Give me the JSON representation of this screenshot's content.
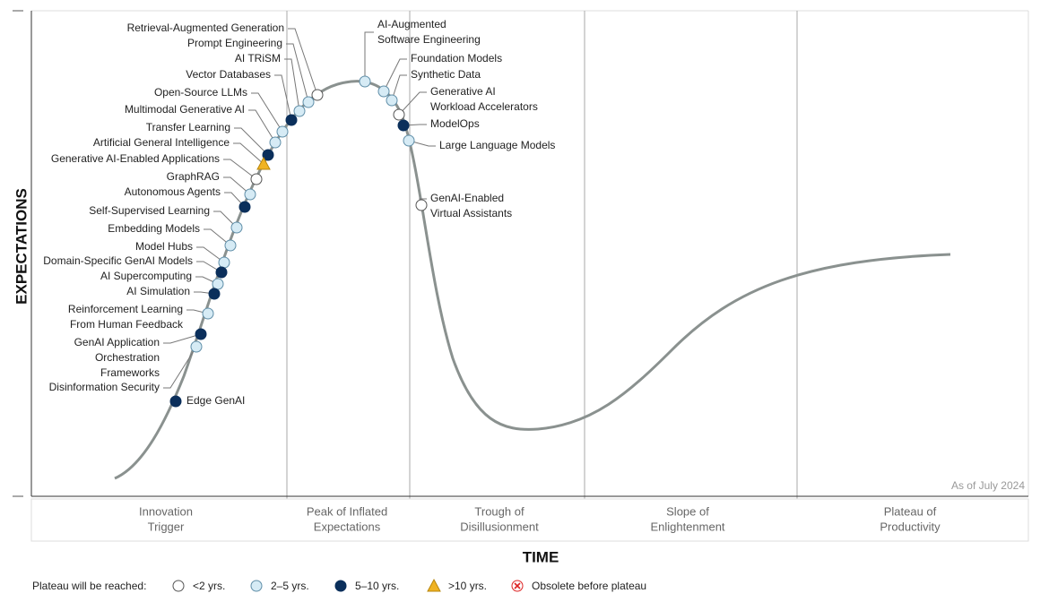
{
  "axis_y_title": "EXPECTATIONS",
  "axis_x_title": "TIME",
  "note": "As of July 2024",
  "phases": [
    [
      "Innovation",
      "Trigger"
    ],
    [
      "Peak of Inflated",
      "Expectations"
    ],
    [
      "Trough of",
      "Disillusionment"
    ],
    [
      "Slope of",
      "Enlightenment"
    ],
    [
      "Plateau of",
      "Productivity"
    ]
  ],
  "legend": {
    "title": "Plateau will be reached:",
    "items": [
      "<2 yrs.",
      "2–5 yrs.",
      "5–10 yrs.",
      ">10 yrs.",
      "Obsolete before plateau"
    ]
  },
  "nodes": [
    {
      "lines": [
        "Retrieval-Augmented Generation"
      ],
      "plateau": "<2 yrs."
    },
    {
      "lines": [
        "Prompt Engineering"
      ],
      "plateau": "2–5 yrs."
    },
    {
      "lines": [
        "AI TRiSM"
      ],
      "plateau": "2–5 yrs."
    },
    {
      "lines": [
        "Vector Databases"
      ],
      "plateau": "5–10 yrs."
    },
    {
      "lines": [
        "Open-Source LLMs"
      ],
      "plateau": "2–5 yrs."
    },
    {
      "lines": [
        "Multimodal Generative AI"
      ],
      "plateau": "2–5 yrs."
    },
    {
      "lines": [
        "Transfer Learning"
      ],
      "plateau": "5–10 yrs."
    },
    {
      "lines": [
        "Artificial General Intelligence"
      ],
      "plateau": ">10 yrs."
    },
    {
      "lines": [
        "Generative AI-Enabled Applications"
      ],
      "plateau": "<2 yrs."
    },
    {
      "lines": [
        "GraphRAG"
      ],
      "plateau": "2–5 yrs."
    },
    {
      "lines": [
        "Autonomous Agents"
      ],
      "plateau": "5–10 yrs."
    },
    {
      "lines": [
        "Self-Supervised Learning"
      ],
      "plateau": "2–5 yrs."
    },
    {
      "lines": [
        "Embedding Models"
      ],
      "plateau": "2–5 yrs."
    },
    {
      "lines": [
        "Model Hubs"
      ],
      "plateau": "2–5 yrs."
    },
    {
      "lines": [
        "Domain-Specific GenAI Models"
      ],
      "plateau": "5–10 yrs."
    },
    {
      "lines": [
        "AI Supercomputing"
      ],
      "plateau": "2–5 yrs."
    },
    {
      "lines": [
        "AI Simulation"
      ],
      "plateau": "5–10 yrs."
    },
    {
      "lines": [
        "Reinforcement Learning",
        "From Human Feedback"
      ],
      "plateau": "2–5 yrs."
    },
    {
      "lines": [
        "GenAI Application",
        "Orchestration",
        "Frameworks"
      ],
      "plateau": "5–10 yrs."
    },
    {
      "lines": [
        "Disinformation Security"
      ],
      "plateau": "2–5 yrs."
    },
    {
      "lines": [
        "Edge GenAI"
      ],
      "plateau": "5–10 yrs."
    },
    {
      "lines": [
        "AI-Augmented",
        "Software Engineering"
      ],
      "plateau": "2–5 yrs."
    },
    {
      "lines": [
        "Foundation Models"
      ],
      "plateau": "2–5 yrs."
    },
    {
      "lines": [
        "Synthetic Data"
      ],
      "plateau": "2–5 yrs."
    },
    {
      "lines": [
        "Generative AI",
        "Workload Accelerators"
      ],
      "plateau": "<2 yrs."
    },
    {
      "lines": [
        "ModelOps"
      ],
      "plateau": "5–10 yrs."
    },
    {
      "lines": [
        "Large Language Models"
      ],
      "plateau": "2–5 yrs."
    },
    {
      "lines": [
        "GenAI-Enabled",
        "Virtual Assistants"
      ],
      "plateau": "<2 yrs."
    }
  ]
}
